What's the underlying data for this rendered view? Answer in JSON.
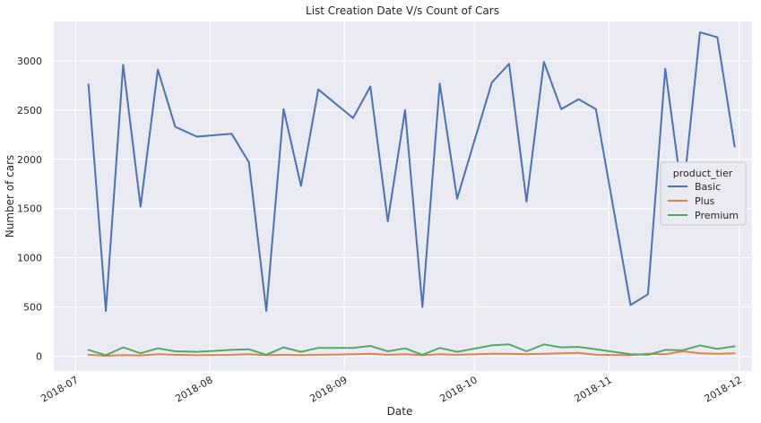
{
  "chart_data": {
    "type": "line",
    "title": "List Creation Date V/s Count of Cars",
    "xlabel": "Date",
    "ylabel": "Number of cars",
    "x_type": "date",
    "xlim": [
      "2018-06-26",
      "2018-12-04"
    ],
    "ylim": [
      -150,
      3400
    ],
    "x_ticks": [
      "2018-07-01",
      "2018-08-01",
      "2018-09-01",
      "2018-10-01",
      "2018-11-01",
      "2018-12-01"
    ],
    "x_tick_labels": [
      "2018-07",
      "2018-08",
      "2018-09",
      "2018-10",
      "2018-11",
      "2018-12"
    ],
    "y_ticks": [
      0,
      500,
      1000,
      1500,
      2000,
      2500,
      3000
    ],
    "y_tick_labels": [
      "0",
      "500",
      "1000",
      "1500",
      "2000",
      "2500",
      "3000"
    ],
    "grid": true,
    "legend": {
      "title": "product_tier",
      "placement": "right"
    },
    "x": [
      "2018-07-04",
      "2018-07-08",
      "2018-07-12",
      "2018-07-16",
      "2018-07-20",
      "2018-07-24",
      "2018-07-29",
      "2018-08-06",
      "2018-08-10",
      "2018-08-14",
      "2018-08-18",
      "2018-08-22",
      "2018-08-26",
      "2018-09-03",
      "2018-09-07",
      "2018-09-11",
      "2018-09-15",
      "2018-09-19",
      "2018-09-23",
      "2018-09-27",
      "2018-10-05",
      "2018-10-09",
      "2018-10-13",
      "2018-10-17",
      "2018-10-21",
      "2018-10-25",
      "2018-10-29",
      "2018-11-06",
      "2018-11-10",
      "2018-11-14",
      "2018-11-18",
      "2018-11-22",
      "2018-11-26",
      "2018-11-30"
    ],
    "series": [
      {
        "name": "Basic",
        "color": "#4c72b0",
        "values": [
          2760,
          460,
          2960,
          1520,
          2910,
          2330,
          2230,
          2260,
          1970,
          460,
          2510,
          1730,
          2710,
          2420,
          2740,
          1370,
          2500,
          500,
          2770,
          1600,
          2780,
          2970,
          1570,
          2990,
          2510,
          2610,
          2510,
          520,
          630,
          2920,
          1600,
          3290,
          3240,
          2130
        ]
      },
      {
        "name": "Plus",
        "color": "#dd8452",
        "values": [
          15,
          5,
          12,
          8,
          20,
          15,
          10,
          15,
          20,
          10,
          15,
          10,
          15,
          20,
          25,
          15,
          20,
          10,
          20,
          15,
          25,
          25,
          20,
          25,
          30,
          35,
          15,
          10,
          25,
          20,
          50,
          30,
          25,
          30
        ]
      },
      {
        "name": "Premium",
        "color": "#55a868",
        "values": [
          65,
          10,
          90,
          30,
          80,
          50,
          45,
          65,
          70,
          15,
          90,
          45,
          85,
          85,
          105,
          50,
          80,
          15,
          85,
          45,
          110,
          120,
          50,
          120,
          90,
          95,
          70,
          20,
          15,
          65,
          60,
          110,
          75,
          100
        ]
      }
    ]
  }
}
